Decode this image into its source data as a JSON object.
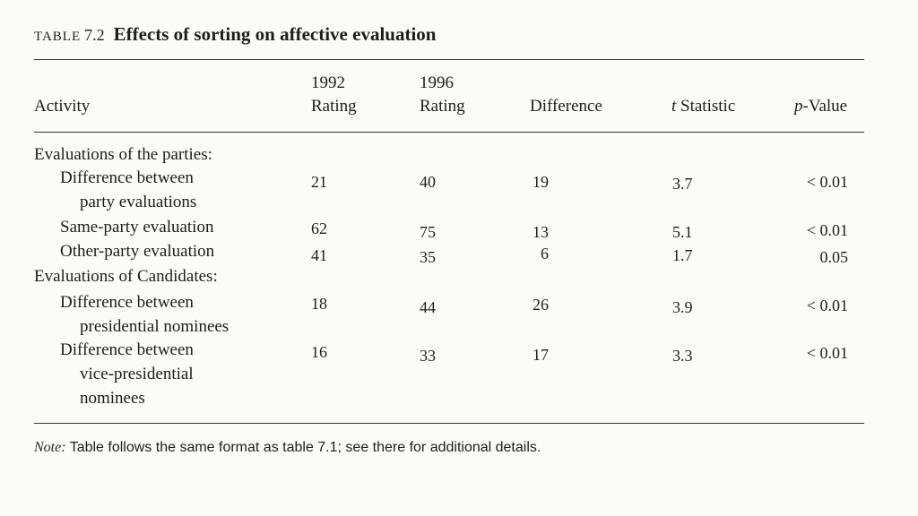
{
  "caption": {
    "label": "TABLE",
    "number": "7.2",
    "title": "Effects of sorting on affective evaluation"
  },
  "headers": {
    "activity": "Activity",
    "rating1992_line1": "1992",
    "rating1992_line2": "Rating",
    "rating1996_line1": "1996",
    "rating1996_line2": "Rating",
    "difference": "Difference",
    "t_italic": "t",
    "t_rest": " Statistic",
    "p_italic": "p",
    "p_rest": "-Value"
  },
  "groups": [
    {
      "label": "Evaluations of the parties:",
      "rows": [
        {
          "label_lines": [
            "Difference between",
            "party evaluations"
          ],
          "r1992": "21",
          "r1996": "40",
          "diff": "19",
          "t": "3.7",
          "p": "< 0.01"
        },
        {
          "label_lines": [
            "Same-party evaluation"
          ],
          "r1992": "62",
          "r1996": "75",
          "diff": "13",
          "t": "5.1",
          "p": "< 0.01"
        },
        {
          "label_lines": [
            "Other-party evaluation"
          ],
          "r1992": "41",
          "r1996": "35",
          "diff": "6",
          "t": "1.7",
          "p": "0.05"
        }
      ]
    },
    {
      "label": "Evaluations of Candidates:",
      "rows": [
        {
          "label_lines": [
            "Difference between",
            "presidential nominees"
          ],
          "r1992": "18",
          "r1996": "44",
          "diff": "26",
          "t": "3.9",
          "p": "< 0.01"
        },
        {
          "label_lines": [
            "Difference between",
            "vice-presidential",
            "nominees"
          ],
          "r1992": "16",
          "r1996": "33",
          "diff": "17",
          "t": "3.3",
          "p": "< 0.01"
        }
      ]
    }
  ],
  "note": {
    "lead": "Note:",
    "text": " Table follows the same format as table 7.1; see there for additional details."
  }
}
